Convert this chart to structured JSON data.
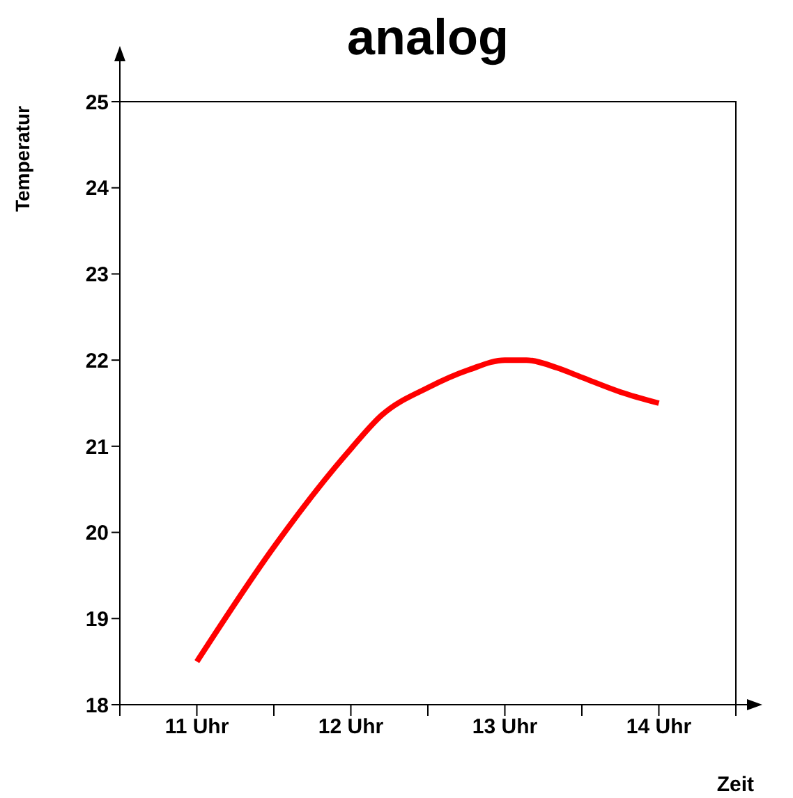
{
  "chart_data": {
    "type": "line",
    "title": "analog",
    "xlabel": "Zeit",
    "ylabel": "Temperatur",
    "x": [
      11,
      11.5,
      11.9,
      12,
      12.2,
      12.5,
      12.77,
      13,
      13.14,
      13.34,
      13.5,
      13.75,
      14
    ],
    "series": [
      {
        "color": "#ff0000",
        "values": [
          18.5,
          19.83,
          20.76,
          20.97,
          21.36,
          21.68,
          21.89,
          22.0,
          22.0,
          21.91,
          21.8,
          21.63,
          21.5
        ]
      }
    ],
    "xlim": [
      10.5,
      14.5
    ],
    "xticks": [
      {
        "value": 10.5,
        "label": null
      },
      {
        "value": 11,
        "label": "11 Uhr"
      },
      {
        "value": 11.5,
        "label": null
      },
      {
        "value": 12,
        "label": "12 Uhr"
      },
      {
        "value": 12.5,
        "label": null
      },
      {
        "value": 13,
        "label": "13 Uhr"
      },
      {
        "value": 13.5,
        "label": null
      },
      {
        "value": 14,
        "label": "14 Uhr"
      },
      {
        "value": 14.5,
        "label": null
      }
    ],
    "ylim": [
      18,
      25
    ],
    "yticks": [
      18,
      19,
      20,
      21,
      22,
      23,
      24,
      25
    ],
    "grid": false,
    "legend": false,
    "marker": "none",
    "line_style": "solid"
  }
}
